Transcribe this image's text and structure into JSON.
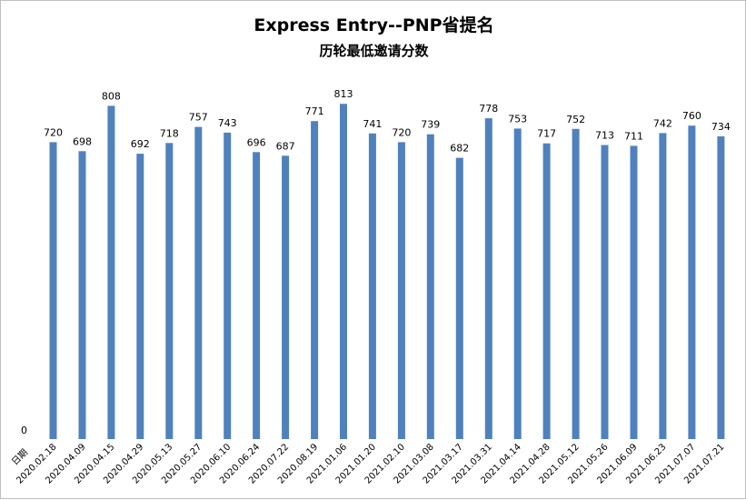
{
  "chart_data": {
    "type": "bar",
    "title": "Express Entry--PNP省提名",
    "subtitle": "历轮最低邀请分数",
    "category_header": "日期",
    "ylim": [
      0,
      820
    ],
    "y_zero_label": "0",
    "bar_color": "#4f81bd",
    "grid": false,
    "categories": [
      "2020.02.18",
      "2020.04.09",
      "2020.04.15",
      "2020.04.29",
      "2020.05.13",
      "2020.05.27",
      "2020.06.10",
      "2020.06.24",
      "2020.07.22",
      "2020.08.19",
      "2021.01.06",
      "2021.01.20",
      "2021.02.10",
      "2021.03.08",
      "2021.03.17",
      "2021.03.31",
      "2021.04.14",
      "2021.04.28",
      "2021.05.12",
      "2021.05.26",
      "2021.06.09",
      "2021.06.23",
      "2021.07.07",
      "2021.07.21"
    ],
    "values": [
      720,
      698,
      808,
      692,
      718,
      757,
      743,
      696,
      687,
      771,
      813,
      741,
      720,
      739,
      682,
      778,
      753,
      717,
      752,
      713,
      711,
      742,
      760,
      734
    ]
  }
}
